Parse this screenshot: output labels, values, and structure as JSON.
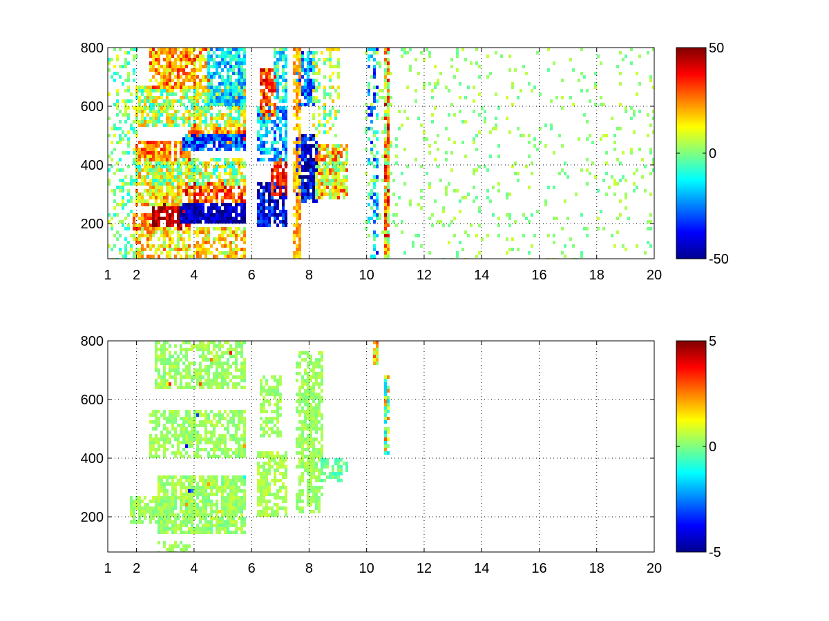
{
  "chart_data": [
    {
      "type": "heatmap",
      "title": "",
      "xlabel": "",
      "ylabel": "",
      "xlim": [
        1,
        20
      ],
      "ylim": [
        80,
        800
      ],
      "x_ticks": [
        1,
        2,
        4,
        6,
        8,
        10,
        12,
        14,
        16,
        18,
        20
      ],
      "y_ticks": [
        200,
        400,
        600,
        800
      ],
      "grid": true,
      "colorbar": {
        "min": -50,
        "max": 50,
        "ticks": [
          50,
          0,
          -50
        ],
        "colormap": "jet"
      },
      "regions": [
        {
          "x": [
            1.0,
            2.0
          ],
          "y": [
            80,
            800
          ],
          "value": 0,
          "noise": 12,
          "density": 0.35
        },
        {
          "x": [
            1.9,
            2.6
          ],
          "y": [
            180,
            230
          ],
          "value": 25,
          "noise": 12,
          "density": 0.9
        },
        {
          "x": [
            2.6,
            3.8
          ],
          "y": [
            180,
            260
          ],
          "value": 45,
          "noise": 10,
          "density": 0.95
        },
        {
          "x": [
            2.0,
            5.8
          ],
          "y": [
            80,
            180
          ],
          "value": 15,
          "noise": 15,
          "density": 0.7
        },
        {
          "x": [
            3.5,
            5.8
          ],
          "y": [
            200,
            270
          ],
          "value": -45,
          "noise": 10,
          "density": 0.95
        },
        {
          "x": [
            3.5,
            5.8
          ],
          "y": [
            280,
            340
          ],
          "value": 30,
          "noise": 15,
          "density": 0.9
        },
        {
          "x": [
            2.0,
            3.5
          ],
          "y": [
            270,
            400
          ],
          "value": 15,
          "noise": 15,
          "density": 0.8
        },
        {
          "x": [
            2.0,
            5.8
          ],
          "y": [
            340,
            420
          ],
          "value": 5,
          "noise": 18,
          "density": 0.8
        },
        {
          "x": [
            2.0,
            3.8
          ],
          "y": [
            420,
            480
          ],
          "value": 25,
          "noise": 15,
          "density": 0.85
        },
        {
          "x": [
            3.8,
            5.8
          ],
          "y": [
            480,
            540
          ],
          "value": 25,
          "noise": 15,
          "density": 0.85
        },
        {
          "x": [
            3.6,
            5.8
          ],
          "y": [
            450,
            500
          ],
          "value": -30,
          "noise": 15,
          "density": 0.9
        },
        {
          "x": [
            2.0,
            5.8
          ],
          "y": [
            540,
            660
          ],
          "value": 5,
          "noise": 18,
          "density": 0.8
        },
        {
          "x": [
            2.5,
            4.5
          ],
          "y": [
            660,
            800
          ],
          "value": 22,
          "noise": 15,
          "density": 0.85
        },
        {
          "x": [
            4.5,
            5.8
          ],
          "y": [
            600,
            800
          ],
          "value": -15,
          "noise": 15,
          "density": 0.85
        },
        {
          "x": [
            6.2,
            7.2
          ],
          "y": [
            190,
            340
          ],
          "value": -40,
          "noise": 15,
          "density": 0.9
        },
        {
          "x": [
            6.7,
            7.2
          ],
          "y": [
            300,
            420
          ],
          "value": 35,
          "noise": 12,
          "density": 0.9
        },
        {
          "x": [
            6.2,
            7.2
          ],
          "y": [
            420,
            600
          ],
          "value": -20,
          "noise": 15,
          "density": 0.85
        },
        {
          "x": [
            6.3,
            6.8
          ],
          "y": [
            560,
            720
          ],
          "value": 30,
          "noise": 15,
          "density": 0.85
        },
        {
          "x": [
            6.8,
            7.2
          ],
          "y": [
            620,
            800
          ],
          "value": -10,
          "noise": 15,
          "density": 0.8
        },
        {
          "x": [
            7.6,
            8.3
          ],
          "y": [
            280,
            500
          ],
          "value": -40,
          "noise": 15,
          "density": 0.9
        },
        {
          "x": [
            8.3,
            9.3
          ],
          "y": [
            290,
            470
          ],
          "value": 15,
          "noise": 20,
          "density": 0.85
        },
        {
          "x": [
            7.6,
            8.2
          ],
          "y": [
            600,
            780
          ],
          "value": -25,
          "noise": 15,
          "density": 0.8
        },
        {
          "x": [
            8.2,
            9.0
          ],
          "y": [
            500,
            800
          ],
          "value": 5,
          "noise": 15,
          "density": 0.4
        },
        {
          "x": [
            7.5,
            7.7
          ],
          "y": [
            80,
            800
          ],
          "value": 20,
          "noise": 8,
          "density": 0.8
        },
        {
          "x": [
            10.1,
            10.4
          ],
          "y": [
            80,
            800
          ],
          "value": -20,
          "noise": 20,
          "density": 0.45
        },
        {
          "x": [
            10.65,
            10.8
          ],
          "y": [
            80,
            800
          ],
          "value": 20,
          "noise": 25,
          "density": 0.9
        },
        {
          "x": [
            10.0,
            20.0
          ],
          "y": [
            80,
            800
          ],
          "value": 2,
          "noise": 6,
          "density": 0.09
        }
      ]
    },
    {
      "type": "heatmap",
      "title": "",
      "xlabel": "",
      "ylabel": "",
      "xlim": [
        1,
        20
      ],
      "ylim": [
        80,
        800
      ],
      "x_ticks": [
        1,
        2,
        4,
        6,
        8,
        10,
        12,
        14,
        16,
        18,
        20
      ],
      "y_ticks": [
        200,
        400,
        600,
        800
      ],
      "grid": true,
      "colorbar": {
        "min": -5,
        "max": 5,
        "ticks": [
          5,
          0,
          -5
        ],
        "colormap": "jet"
      },
      "regions": [
        {
          "x": [
            1.8,
            3.2
          ],
          "y": [
            180,
            260
          ],
          "value": 0.3,
          "noise": 0.4,
          "density": 0.85
        },
        {
          "x": [
            2.8,
            5.8
          ],
          "y": [
            150,
            340
          ],
          "value": 0.3,
          "noise": 0.5,
          "density": 0.9
        },
        {
          "x": [
            2.8,
            3.8
          ],
          "y": [
            80,
            110
          ],
          "value": 0.3,
          "noise": 0.3,
          "density": 0.6
        },
        {
          "x": [
            2.5,
            5.8
          ],
          "y": [
            400,
            560
          ],
          "value": 0.3,
          "noise": 0.4,
          "density": 0.75
        },
        {
          "x": [
            2.7,
            5.8
          ],
          "y": [
            640,
            790
          ],
          "value": 0.3,
          "noise": 0.4,
          "density": 0.75
        },
        {
          "x": [
            6.2,
            7.2
          ],
          "y": [
            200,
            420
          ],
          "value": 0.4,
          "noise": 0.4,
          "density": 0.85
        },
        {
          "x": [
            6.3,
            7.0
          ],
          "y": [
            480,
            680
          ],
          "value": 0.3,
          "noise": 0.4,
          "density": 0.65
        },
        {
          "x": [
            7.6,
            8.4
          ],
          "y": [
            220,
            760
          ],
          "value": 0.3,
          "noise": 0.4,
          "density": 0.75
        },
        {
          "x": [
            8.4,
            9.3
          ],
          "y": [
            320,
            400
          ],
          "value": -0.3,
          "noise": 0.5,
          "density": 0.8
        },
        {
          "x": [
            10.25,
            10.35
          ],
          "y": [
            720,
            800
          ],
          "value": 1.5,
          "noise": 1.5,
          "density": 0.95
        },
        {
          "x": [
            10.7,
            10.8
          ],
          "y": [
            420,
            680
          ],
          "value": 0.5,
          "noise": 2.5,
          "density": 0.95
        },
        {
          "x": [
            3.0,
            5.8
          ],
          "y": [
            150,
            790
          ],
          "value": 0.0,
          "noise": 4.0,
          "density": 0.01
        }
      ]
    }
  ]
}
